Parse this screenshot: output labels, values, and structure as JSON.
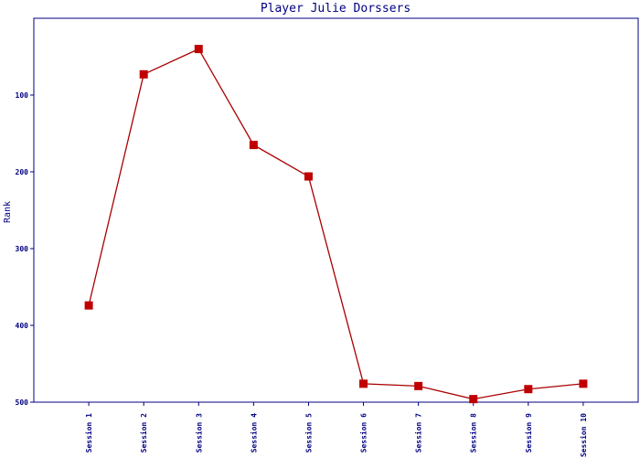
{
  "chart_data": {
    "type": "line",
    "title": "Player Julie Dorssers",
    "y_label": "Rank",
    "categories": [
      "Session 1",
      "Session 2",
      "Session 3",
      "Session 4",
      "Session 5",
      "Session 6",
      "Session 7",
      "Session 8",
      "Session 9",
      "Session 10"
    ],
    "series": [
      {
        "name": "Rank",
        "color": "#aa0000",
        "values": [
          374,
          73,
          40,
          165,
          206,
          476,
          479,
          496,
          483,
          476
        ]
      }
    ],
    "ylim": [
      500,
      0
    ],
    "yticks": [
      100,
      200,
      300,
      400,
      500
    ]
  }
}
